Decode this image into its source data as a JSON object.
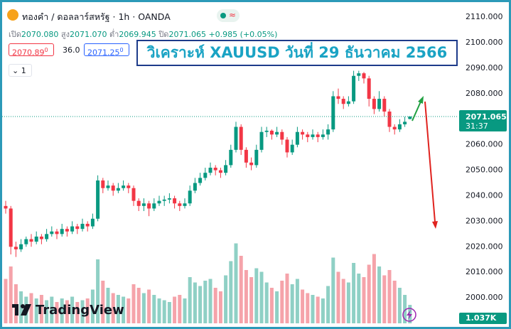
{
  "header": {
    "symbol": "ทองคำ / ดอลลาร์สหรัฐ · 1h · OANDA",
    "open_label": "เปิด",
    "open": "2070.080",
    "high_label": "สูง",
    "high": "2071.070",
    "low_label": "ต่ำ",
    "low": "2069.945",
    "close_label": "ปิด",
    "close": "2071.065",
    "change": "+0.985 (+0.05%)",
    "sell": "2070.89",
    "sell_sup": "0",
    "spread": "36.0",
    "buy": "2071.25",
    "buy_sup": "0",
    "interval_count": "1",
    "brand": "TradingView"
  },
  "annotation": {
    "title": "วิเคราะห์ XAUUSD วันที่ 29 ธันวาคม 2566"
  },
  "chart_data": {
    "type": "candlestick",
    "open": [
      2036,
      2035,
      2020,
      2019,
      2021,
      2023,
      2022,
      2024,
      2023,
      2025,
      2026,
      2025,
      2027,
      2026,
      2028,
      2027,
      2029,
      2028,
      2031,
      2046,
      2043,
      2044,
      2042,
      2043,
      2044,
      2043,
      2038,
      2036,
      2037,
      2035,
      2037,
      2038,
      2038.5,
      2039,
      2037,
      2036,
      2037,
      2042,
      2045,
      2047,
      2049,
      2051,
      2050,
      2049,
      2052,
      2058,
      2067,
      2058,
      2053,
      2052,
      2058,
      2065,
      2065.5,
      2064,
      2065,
      2062,
      2057,
      2060,
      2065,
      2064,
      2063,
      2064,
      2063,
      2064,
      2066,
      2079,
      2078,
      2076,
      2077,
      2087,
      2088,
      2086,
      2078,
      2074,
      2078,
      2073,
      2067,
      2066,
      2068,
      2070.08
    ],
    "high": [
      2038,
      2036,
      2022,
      2023,
      2024,
      2025,
      2026,
      2025,
      2027,
      2028,
      2027,
      2029,
      2028,
      2030,
      2029,
      2031,
      2030,
      2033,
      2048,
      2047,
      2046,
      2045,
      2045,
      2046,
      2045,
      2044,
      2039,
      2039,
      2038,
      2039,
      2040,
      2040,
      2041,
      2040,
      2038,
      2039,
      2044,
      2047,
      2049,
      2051,
      2053,
      2052,
      2051,
      2054,
      2060,
      2069,
      2068,
      2059,
      2055,
      2060,
      2067,
      2067,
      2066,
      2067,
      2066,
      2063,
      2062,
      2067,
      2066,
      2065,
      2066,
      2065,
      2066,
      2068,
      2081,
      2082,
      2079,
      2079,
      2089,
      2089,
      2088.5,
      2087,
      2079,
      2081,
      2079,
      2074,
      2068,
      2070,
      2071,
      2071.07
    ],
    "low": [
      2033,
      2017,
      2016,
      2018,
      2020,
      2020,
      2021,
      2021,
      2022,
      2024,
      2023,
      2024,
      2024,
      2025,
      2025,
      2026,
      2026,
      2027,
      2030,
      2041,
      2042,
      2040,
      2041,
      2042,
      2041,
      2036,
      2034,
      2034,
      2032,
      2034,
      2036,
      2036,
      2037,
      2035,
      2034,
      2035,
      2036,
      2041,
      2044,
      2046,
      2048,
      2048,
      2047,
      2048,
      2051,
      2057,
      2056,
      2051,
      2050,
      2051,
      2057,
      2063,
      2062,
      2063,
      2060,
      2055,
      2056,
      2059,
      2062,
      2061,
      2062,
      2061,
      2062,
      2062,
      2065,
      2076,
      2074,
      2075,
      2076,
      2085,
      2084,
      2075,
      2072,
      2073,
      2071,
      2065,
      2064,
      2065,
      2067,
      2069.945
    ],
    "close": [
      2035,
      2020,
      2019,
      2021,
      2023,
      2022,
      2024,
      2023,
      2025,
      2026,
      2025,
      2027,
      2026,
      2028,
      2027,
      2029,
      2028,
      2031,
      2046,
      2043,
      2044,
      2042,
      2043,
      2044,
      2043,
      2038,
      2036,
      2037,
      2035,
      2037,
      2038,
      2038.5,
      2039,
      2037,
      2036,
      2037,
      2042,
      2045,
      2047,
      2049,
      2051,
      2050,
      2049,
      2052,
      2058,
      2067,
      2058,
      2053,
      2052,
      2058,
      2065,
      2065.5,
      2064,
      2065,
      2062,
      2057,
      2060,
      2065,
      2064,
      2063,
      2064,
      2063,
      2064,
      2066,
      2079,
      2078,
      2076,
      2077,
      2087,
      2088,
      2086,
      2078,
      2074,
      2078,
      2073,
      2067,
      2066,
      2068,
      2069,
      2071.065
    ],
    "volume": {
      "values": [
        2500,
        3200,
        2200,
        1800,
        1500,
        1700,
        1400,
        1600,
        1300,
        1500,
        1200,
        1400,
        1300,
        1500,
        1200,
        1300,
        1400,
        1900,
        3600,
        2400,
        2000,
        1700,
        1600,
        1500,
        1400,
        2200,
        2000,
        1700,
        1900,
        1600,
        1400,
        1300,
        1200,
        1500,
        1600,
        1400,
        2600,
        2300,
        2100,
        2400,
        2500,
        2000,
        1800,
        2700,
        3500,
        4500,
        3800,
        3000,
        2600,
        3100,
        2900,
        2300,
        2000,
        1800,
        2400,
        2800,
        2200,
        2500,
        1900,
        1700,
        1600,
        1500,
        1400,
        2100,
        3700,
        2900,
        2500,
        2300,
        3400,
        2800,
        2600,
        3300,
        3900,
        3200,
        2700,
        3000,
        2400,
        2000,
        1600,
        1037
      ],
      "value_labels": [
        null,
        null,
        null,
        null,
        null,
        null,
        null,
        null,
        null,
        null,
        null,
        null,
        null,
        null,
        null,
        null,
        null,
        null,
        null,
        null,
        null,
        null,
        null,
        null,
        null,
        null,
        null,
        null,
        null,
        null,
        null,
        null,
        null,
        null,
        null,
        null,
        null,
        null,
        null,
        null,
        null,
        null,
        null,
        null,
        null,
        null,
        null,
        null,
        null,
        null,
        null,
        null,
        null,
        null,
        null,
        null,
        null,
        null,
        null,
        null,
        null,
        null,
        null,
        null,
        null,
        null,
        null,
        null,
        null,
        null,
        null,
        null,
        null,
        null,
        null,
        null,
        null,
        null,
        null,
        "1.037K"
      ]
    },
    "volume_ylim": [
      0,
      5000
    ],
    "ylim": [
      1990,
      2114.5
    ],
    "yticks": [
      {
        "value": 2000,
        "label": "2000.000"
      },
      {
        "value": 2010,
        "label": "2010.000"
      },
      {
        "value": 2020,
        "label": "2020.000"
      },
      {
        "value": 2030,
        "label": "2030.000"
      },
      {
        "value": 2040,
        "label": "2040.000"
      },
      {
        "value": 2050,
        "label": "2050.000"
      },
      {
        "value": 2060,
        "label": "2060.000"
      },
      {
        "value": 2070,
        "label": "2070.000"
      },
      {
        "value": 2080,
        "label": "2080.000"
      },
      {
        "value": 2090,
        "label": "2090.000"
      },
      {
        "value": 2100,
        "label": "2100.000"
      },
      {
        "value": 2110,
        "label": "2110.000"
      }
    ],
    "last_price_label": "2071.065",
    "countdown": "31:37",
    "colors": {
      "up": "#089981",
      "down": "#f23645",
      "up_volume": "#8fd0c5",
      "down_volume": "#f5a3aa"
    }
  }
}
